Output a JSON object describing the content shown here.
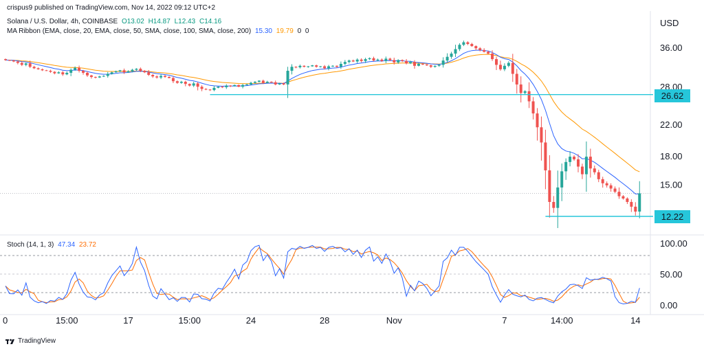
{
  "header": {
    "publisher": "crispus9 published on TradingView.com, Nov 14, 2022 09:12 UTC+2",
    "symbol": "Solana / U.S. Dollar, 4h, COINBASE",
    "ohlc": {
      "o": "O13.02",
      "h": "H14.87",
      "l": "L12.43",
      "c": "C14.16"
    },
    "ma_label": "MA Ribbon (EMA, close, 20, EMA, close, 50, SMA, close, 100, SMA, close, 200)",
    "ma_values": [
      "15.30",
      "19.79",
      "0",
      "0"
    ],
    "stoch_label": "Stoch (14, 1, 3)",
    "stoch_values": [
      "47.34",
      "23.72"
    ],
    "currency": "USD"
  },
  "brand": "TradingView",
  "colors": {
    "up": "#26a69a",
    "down": "#ef5350",
    "ema20": "#2962ff",
    "ema50": "#ff9800",
    "level": "#26c6da",
    "stochK": "#2962ff",
    "stochD": "#ff6d00"
  },
  "chart_data": {
    "type": "candlestick",
    "price_axis": {
      "ticks": [
        "36.00",
        "28.00",
        "22.00",
        "18.00",
        "15.00"
      ],
      "tick_values": [
        36,
        28,
        22,
        18,
        15
      ],
      "hidden_value": 12.76
    },
    "stoch_axis": {
      "ticks": [
        "100.00",
        "50.00",
        "0.00"
      ],
      "tick_values": [
        100,
        50,
        0
      ],
      "bands": [
        80,
        20
      ]
    },
    "x_ticks": [
      {
        "label": "0",
        "i": 0
      },
      {
        "label": "15:00",
        "i": 15
      },
      {
        "label": "17",
        "i": 30
      },
      {
        "label": "15:00",
        "i": 45
      },
      {
        "label": "24",
        "i": 60
      },
      {
        "label": "28",
        "i": 78
      },
      {
        "label": "Nov",
        "i": 95
      },
      {
        "label": "7",
        "i": 122
      },
      {
        "label": "14:00",
        "i": 136
      },
      {
        "label": "14",
        "i": 154
      }
    ],
    "levels": [
      {
        "label": "26.62",
        "value": 26.62,
        "from_i": 50
      },
      {
        "label": "12.22",
        "value": 12.22,
        "from_i": 132
      }
    ],
    "last_price": 14.16,
    "closes": [
      33.2,
      33.1,
      32.9,
      32.6,
      32.2,
      32.5,
      31.8,
      31.5,
      31.3,
      31.1,
      31.0,
      30.8,
      30.5,
      30.7,
      30.3,
      30.6,
      31.2,
      31.6,
      31.0,
      30.6,
      30.1,
      29.8,
      29.7,
      29.9,
      30.0,
      30.4,
      30.7,
      30.9,
      31.1,
      30.7,
      30.9,
      31.2,
      31.4,
      31.0,
      30.7,
      30.2,
      29.9,
      29.7,
      30.0,
      29.8,
      29.6,
      29.0,
      28.7,
      28.9,
      28.5,
      28.2,
      28.6,
      28.0,
      27.6,
      27.5,
      27.4,
      27.8,
      28.0,
      27.9,
      28.2,
      28.1,
      28.3,
      28.0,
      28.3,
      28.4,
      28.7,
      28.9,
      29.1,
      28.7,
      28.9,
      28.8,
      28.4,
      28.6,
      28.4,
      31.0,
      31.8,
      31.7,
      32.0,
      31.8,
      31.9,
      32.1,
      31.8,
      31.9,
      31.5,
      31.9,
      32.0,
      31.8,
      32.4,
      32.8,
      33.1,
      32.9,
      33.3,
      33.0,
      33.4,
      33.6,
      33.1,
      33.3,
      33.0,
      33.5,
      33.2,
      32.7,
      33.2,
      33.0,
      32.5,
      32.8,
      32.0,
      32.4,
      32.3,
      32.1,
      31.8,
      32.0,
      32.2,
      33.1,
      33.9,
      34.6,
      35.6,
      36.6,
      37.2,
      36.8,
      36.3,
      35.8,
      35.4,
      35.0,
      34.6,
      33.4,
      32.2,
      31.3,
      32.0,
      32.6,
      30.4,
      28.4,
      26.9,
      27.2,
      25.5,
      23.6,
      21.6,
      19.6,
      16.4,
      13.4,
      12.9,
      14.7,
      16.3,
      17.3,
      17.9,
      17.6,
      16.8,
      16.0,
      17.9,
      16.6,
      16.2,
      15.5,
      15.1,
      14.9,
      14.6,
      14.3,
      13.9,
      13.7,
      13.4,
      13.0,
      12.6,
      14.16
    ]
  }
}
